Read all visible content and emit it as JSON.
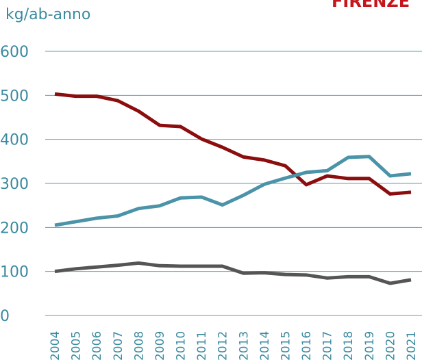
{
  "chart_data": {
    "type": "line",
    "title": "FIRENZE",
    "y_label": "kg/ab-anno",
    "categories": [
      "2004",
      "2005",
      "2006",
      "2007",
      "2008",
      "2009",
      "2010",
      "2011",
      "2012",
      "2013",
      "2014",
      "2015",
      "2016",
      "2017",
      "2018",
      "2019",
      "2020",
      "2021"
    ],
    "series": [
      {
        "color": "#8b0d0d",
        "values": [
          503,
          498,
          498,
          488,
          464,
          432,
          429,
          401,
          382,
          360,
          353,
          340,
          297,
          317,
          311,
          311,
          276,
          280
        ]
      },
      {
        "color": "#4a93a8",
        "values": [
          205,
          213,
          221,
          226,
          243,
          249,
          267,
          269,
          251,
          273,
          298,
          312,
          325,
          329,
          359,
          361,
          317,
          322
        ]
      },
      {
        "color": "#555555",
        "values": [
          100,
          106,
          110,
          114,
          119,
          113,
          112,
          112,
          112,
          96,
          97,
          93,
          92,
          85,
          88,
          88,
          73,
          81
        ]
      }
    ],
    "ylim": [
      0,
      600
    ],
    "yticks": [
      0,
      100,
      200,
      300,
      400,
      500,
      600
    ],
    "grid": true
  }
}
